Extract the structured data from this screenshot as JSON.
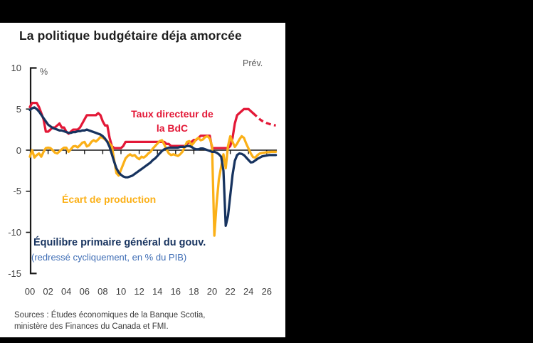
{
  "title": "La politique budgétaire déja amorcée",
  "labels": {
    "forecast": "Prév.",
    "unit": "%"
  },
  "annotations": {
    "policy_rate_line1": "Taux directeur de",
    "policy_rate_line2": "la BdC",
    "output_gap": "Écart de production",
    "primary_balance_line1": "Équilibre primaire général du gouv.",
    "primary_balance_line2": "(redressé cycliquement, en % du PIB)"
  },
  "sources_line1": "Sources : Études économiques de la Banque Scotia,",
  "sources_line2": "ministère des Finances du Canada et FMI.",
  "colors": {
    "frame": "#000000",
    "card": "#ffffff",
    "title": "#1f1f1f",
    "muted": "#595959",
    "ticks": "#3f3f3f",
    "sources": "#3d3d3d",
    "red": "#e31837",
    "gold": "#fbb017",
    "navy": "#17335f",
    "sub_blue": "#3e6db5"
  },
  "chart_data": {
    "type": "line",
    "title": "La politique budgétaire déja amorcée",
    "ylabel": "%",
    "ylim": [
      -15,
      10
    ],
    "xlim": [
      2000,
      2027.2
    ],
    "grid": false,
    "legend_position": "inline-annotations",
    "forecast_start": 2024.5,
    "axis_color": "#1a1a1a",
    "x_start": 2000,
    "x_step": 0.25,
    "x_ticks": [
      2000,
      2002,
      2004,
      2006,
      2008,
      2010,
      2012,
      2014,
      2016,
      2018,
      2020,
      2022,
      2024,
      2026
    ],
    "x_tick_labels": [
      "00",
      "02",
      "04",
      "06",
      "08",
      "10",
      "12",
      "14",
      "16",
      "18",
      "20",
      "22",
      "24",
      "26"
    ],
    "y_ticks": [
      10,
      5,
      0,
      -5,
      -10,
      -15
    ],
    "y_tick_labels": [
      "10",
      "5",
      "0",
      "-5",
      "-10",
      "-15"
    ],
    "series": [
      {
        "name": "Taux directeur de la BdC",
        "color": "#e31837",
        "style": "solid-then-dashed-forecast",
        "values": [
          5.25,
          5.75,
          5.75,
          5.75,
          5.25,
          4.5,
          3.75,
          2.25,
          2.25,
          2.5,
          2.75,
          2.75,
          3.0,
          3.25,
          2.75,
          2.75,
          2.25,
          2.0,
          2.25,
          2.5,
          2.5,
          2.5,
          2.75,
          3.25,
          3.75,
          4.25,
          4.25,
          4.25,
          4.25,
          4.25,
          4.5,
          4.25,
          3.5,
          3.0,
          3.0,
          1.5,
          0.5,
          0.25,
          0.25,
          0.25,
          0.25,
          0.5,
          1.0,
          1.0,
          1.0,
          1.0,
          1.0,
          1.0,
          1.0,
          1.0,
          1.0,
          1.0,
          1.0,
          1.0,
          1.0,
          1.0,
          1.0,
          1.0,
          1.0,
          1.0,
          0.75,
          0.75,
          0.5,
          0.5,
          0.5,
          0.5,
          0.5,
          0.5,
          0.5,
          0.75,
          1.0,
          1.0,
          1.25,
          1.25,
          1.5,
          1.75,
          1.75,
          1.75,
          1.75,
          1.75,
          0.25,
          0.25,
          0.25,
          0.25,
          0.25,
          0.25,
          0.25,
          0.25,
          0.5,
          1.5,
          3.25,
          4.25,
          4.5,
          4.75,
          5.0,
          5.0,
          5.0,
          4.75,
          4.5,
          4.25,
          4.0,
          3.75,
          3.55,
          3.45,
          3.3,
          3.2,
          3.1,
          3.05,
          3.0
        ]
      },
      {
        "name": "Écart de production",
        "color": "#fbb017",
        "style": "solid",
        "values": [
          -0.8,
          0.0,
          -0.9,
          -0.6,
          -0.4,
          -0.8,
          -0.2,
          0.25,
          0.3,
          0.25,
          0.0,
          -0.3,
          -0.4,
          -0.15,
          0.1,
          0.3,
          0.3,
          -0.2,
          0.1,
          0.45,
          0.5,
          0.35,
          0.6,
          0.9,
          1.0,
          0.45,
          0.6,
          1.0,
          1.2,
          1.05,
          1.3,
          1.6,
          1.5,
          1.3,
          1.1,
          0.8,
          0.5,
          -1.2,
          -2.8,
          -3.1,
          -2.4,
          -1.7,
          -1.0,
          -0.7,
          -0.5,
          -0.7,
          -0.6,
          -0.9,
          -1.1,
          -0.8,
          -0.9,
          -0.7,
          -0.4,
          -0.2,
          0.2,
          0.5,
          0.8,
          1.1,
          1.2,
          0.7,
          0.1,
          -0.4,
          -0.6,
          -0.5,
          -0.6,
          -0.7,
          -0.5,
          -0.2,
          0.4,
          1.0,
          1.1,
          0.6,
          0.9,
          1.3,
          1.5,
          1.2,
          1.3,
          1.6,
          1.7,
          1.4,
          0.5,
          -10.4,
          -6.5,
          -3.5,
          -2.0,
          -0.5,
          -2.2,
          0.5,
          1.7,
          1.0,
          0.4,
          0.8,
          1.3,
          1.7,
          1.5,
          0.8,
          0.2,
          -0.4,
          -0.85,
          -0.9,
          -0.6,
          -0.4,
          -0.35,
          -0.3,
          -0.25,
          -0.25,
          -0.2,
          -0.2,
          -0.2
        ]
      },
      {
        "name": "Équilibre primaire général du gouv. (redressé cycliquement, en % du PIB)",
        "color": "#17335f",
        "style": "solid",
        "values": [
          4.9,
          5.1,
          5.2,
          5.0,
          4.7,
          4.3,
          3.9,
          3.5,
          3.1,
          2.9,
          2.7,
          2.6,
          2.5,
          2.4,
          2.4,
          2.3,
          2.2,
          2.1,
          2.1,
          2.2,
          2.2,
          2.3,
          2.3,
          2.4,
          2.4,
          2.5,
          2.4,
          2.3,
          2.2,
          2.1,
          2.0,
          1.9,
          1.7,
          1.4,
          1.0,
          0.4,
          -0.5,
          -1.4,
          -2.2,
          -2.7,
          -3.0,
          -3.2,
          -3.3,
          -3.3,
          -3.2,
          -3.1,
          -2.9,
          -2.7,
          -2.5,
          -2.3,
          -2.1,
          -1.9,
          -1.7,
          -1.5,
          -1.2,
          -1.0,
          -0.7,
          -0.4,
          -0.1,
          0.1,
          0.2,
          0.3,
          0.3,
          0.3,
          0.3,
          0.3,
          0.4,
          0.4,
          0.4,
          0.5,
          0.5,
          0.4,
          0.2,
          0.1,
          0.1,
          0.2,
          0.2,
          0.1,
          0.0,
          -0.1,
          -0.2,
          -0.2,
          -0.3,
          -0.5,
          -0.8,
          -2.5,
          -9.2,
          -8.0,
          -5.5,
          -3.0,
          -1.3,
          -0.6,
          -0.4,
          -0.45,
          -0.6,
          -0.9,
          -1.2,
          -1.5,
          -1.45,
          -1.25,
          -1.05,
          -0.9,
          -0.75,
          -0.7,
          -0.65,
          -0.6,
          -0.6,
          -0.6,
          -0.6
        ]
      }
    ]
  }
}
